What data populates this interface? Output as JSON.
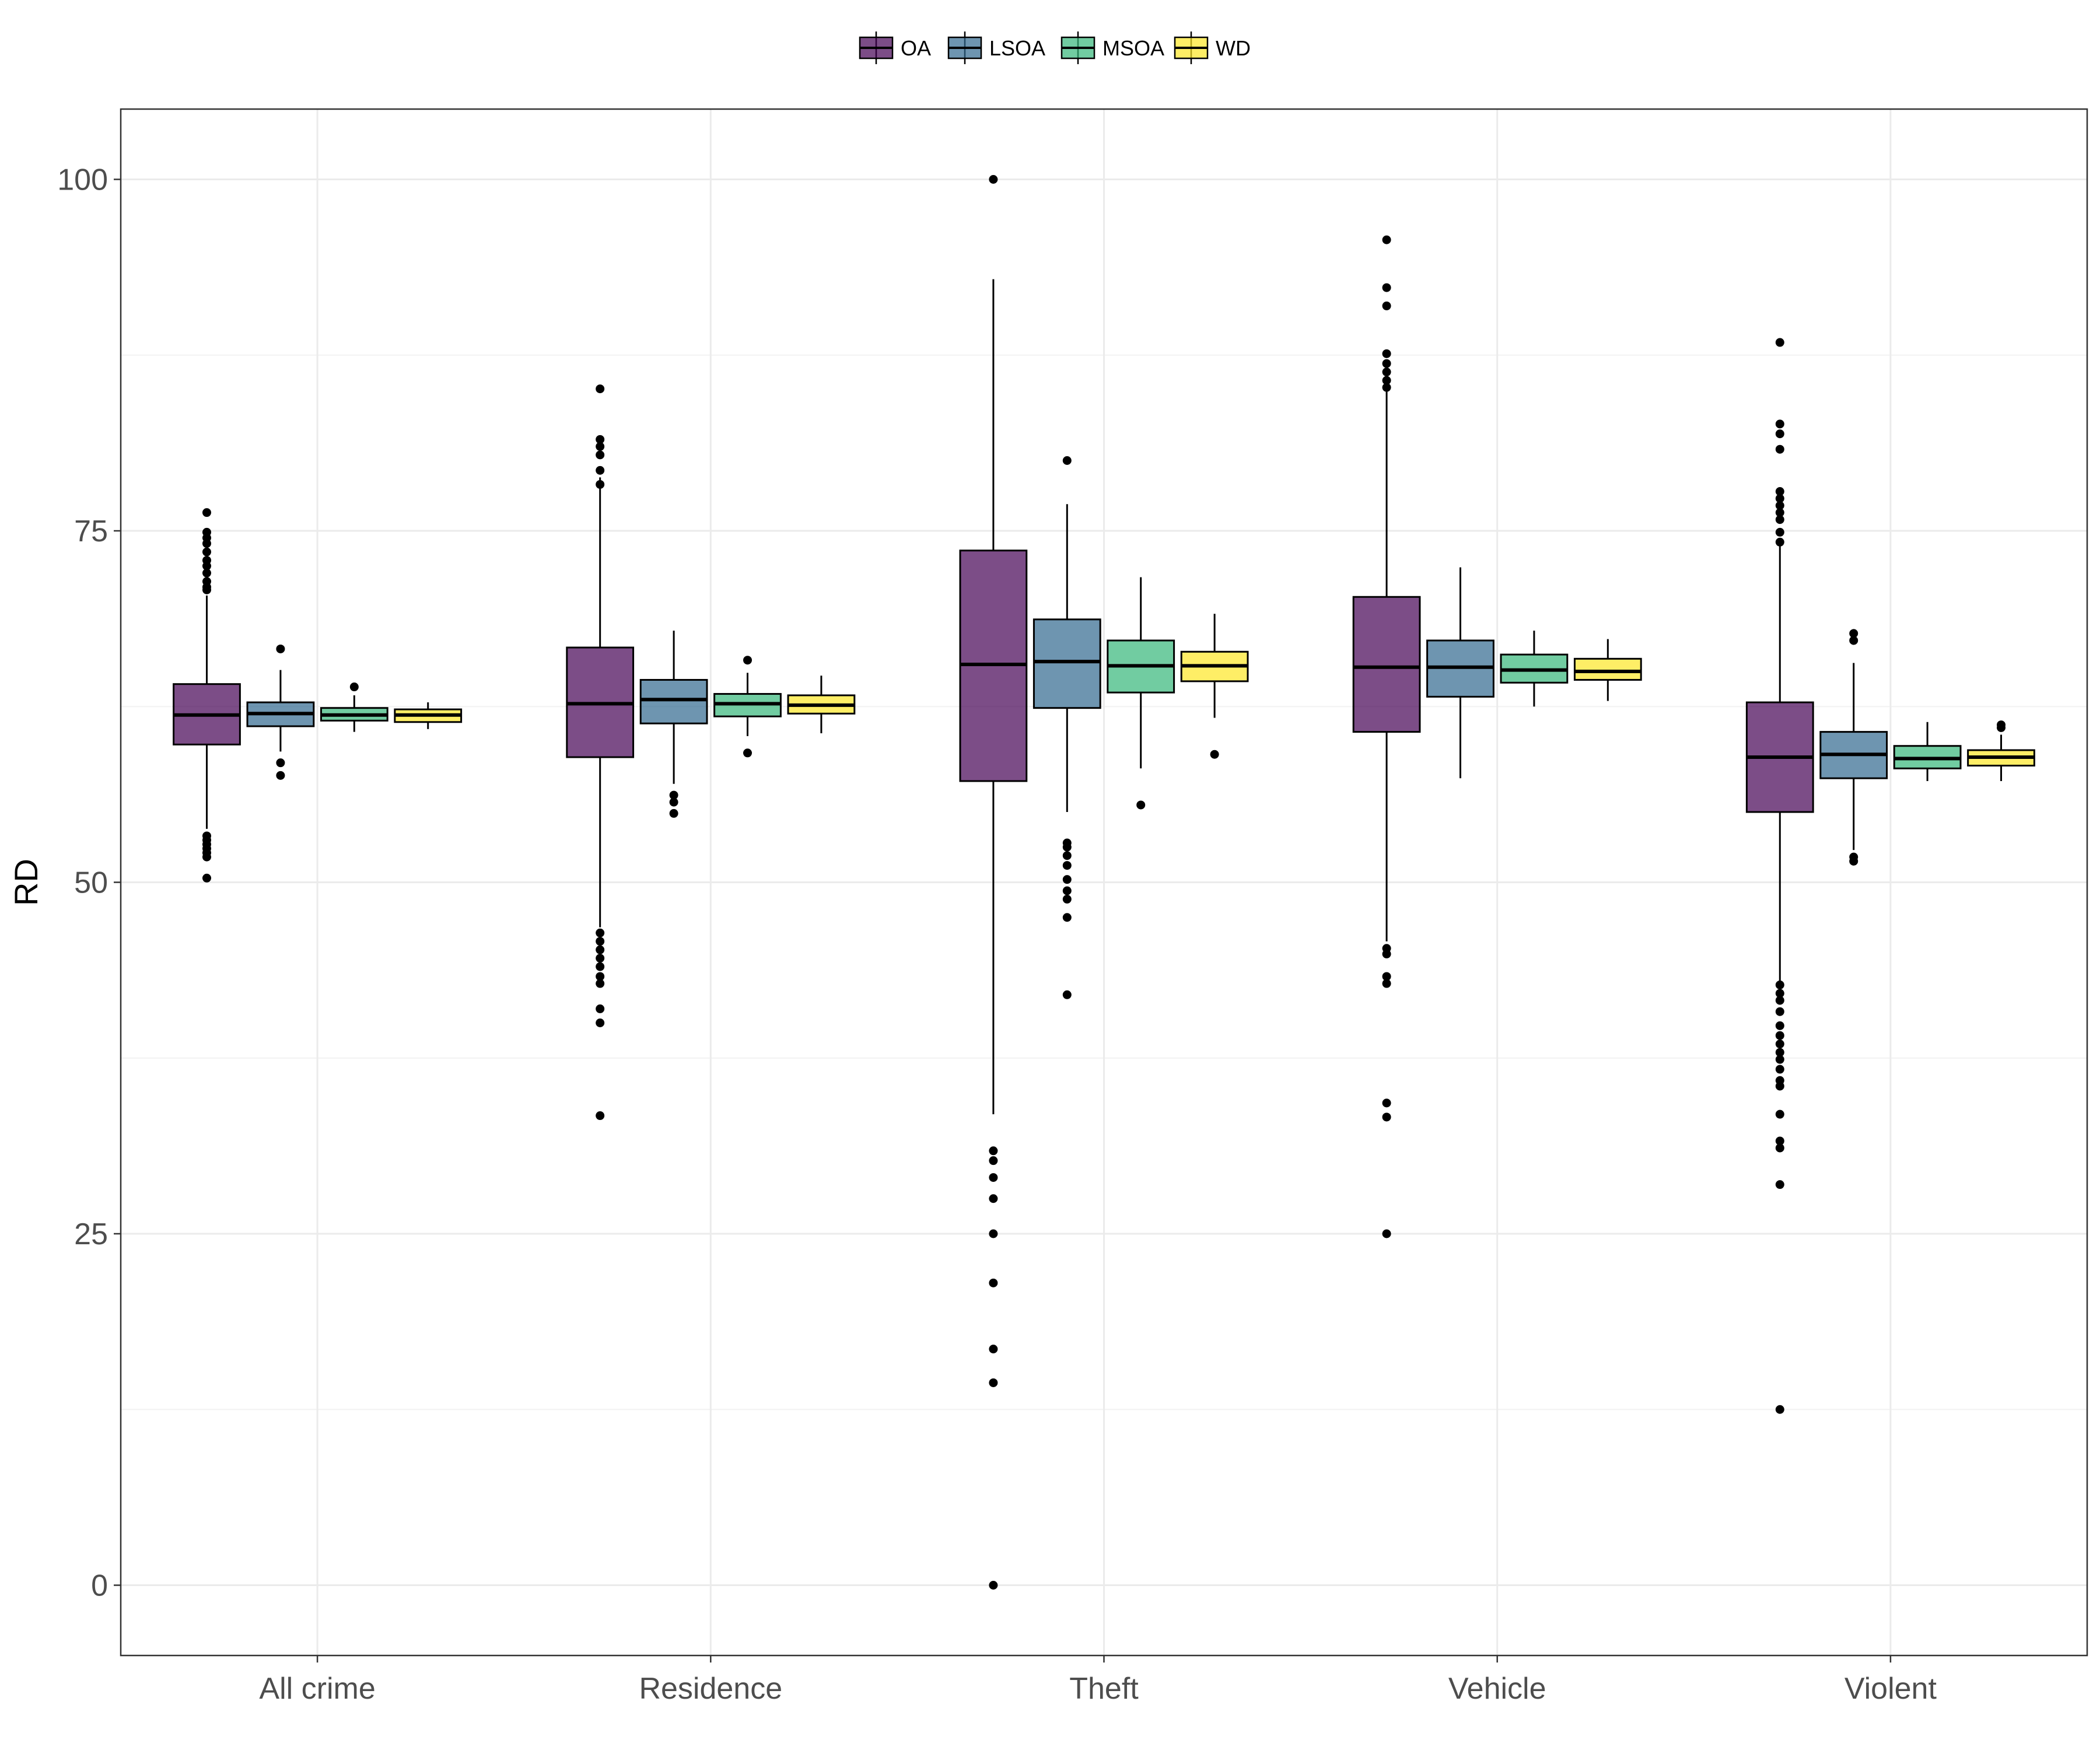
{
  "chart_data": {
    "type": "box",
    "ylabel": "RD",
    "xlabel": "",
    "ylim": [
      -5,
      105
    ],
    "yticks": [
      0,
      25,
      50,
      75,
      100
    ],
    "categories": [
      "All crime",
      "Residence",
      "Theft",
      "Vehicle",
      "Violent"
    ],
    "legend": {
      "position": "top",
      "title": ""
    },
    "grid": true,
    "series": [
      {
        "name": "OA",
        "color": "#440154",
        "boxes": [
          {
            "q1": 59.8,
            "median": 61.9,
            "q3": 64.1,
            "lower": 53.8,
            "upper": 70.4,
            "outliers": [
              76.3,
              74.9,
              74.5,
              74.1,
              73.5,
              72.9,
              72.5,
              72.0,
              71.4,
              71.0,
              70.8,
              53.3,
              53.0,
              52.7,
              52.4,
              52.1,
              51.8,
              50.3
            ]
          },
          {
            "q1": 58.9,
            "median": 62.7,
            "q3": 66.7,
            "lower": 46.8,
            "upper": 78.8,
            "outliers": [
              85.1,
              81.5,
              81.0,
              80.4,
              79.3,
              78.3,
              46.4,
              45.8,
              45.2,
              44.6,
              44.0,
              43.3,
              42.8,
              41.0,
              40.0,
              33.4
            ]
          },
          {
            "q1": 57.2,
            "median": 65.5,
            "q3": 73.6,
            "lower": 33.5,
            "upper": 92.9,
            "outliers": [
              100.0,
              30.9,
              30.2,
              29.0,
              27.5,
              25.0,
              21.5,
              16.8,
              14.4,
              0.0
            ]
          },
          {
            "q1": 60.7,
            "median": 65.3,
            "q3": 70.3,
            "lower": 45.8,
            "upper": 85.0,
            "outliers": [
              95.7,
              92.3,
              91.0,
              87.6,
              86.9,
              86.3,
              85.7,
              85.2,
              45.3,
              44.9,
              43.3,
              42.8,
              34.3,
              33.3,
              25.0
            ]
          },
          {
            "q1": 55.0,
            "median": 58.9,
            "q3": 62.8,
            "lower": 43.0,
            "upper": 74.5,
            "outliers": [
              88.4,
              82.6,
              81.9,
              80.8,
              77.8,
              77.3,
              76.8,
              76.3,
              75.8,
              74.9,
              74.2,
              42.7,
              42.1,
              41.6,
              40.8,
              39.8,
              39.1,
              38.5,
              37.9,
              37.4,
              36.7,
              35.9,
              35.5,
              33.5,
              31.6,
              31.1,
              28.5,
              12.5
            ]
          }
        ]
      },
      {
        "name": "LSOA",
        "color": "#31688e",
        "boxes": [
          {
            "q1": 61.1,
            "median": 62.0,
            "q3": 62.8,
            "lower": 59.3,
            "upper": 65.1,
            "outliers": [
              66.6,
              58.5,
              57.6
            ]
          },
          {
            "q1": 61.3,
            "median": 63.0,
            "q3": 64.4,
            "lower": 57.0,
            "upper": 67.9,
            "outliers": [
              56.2,
              55.7,
              54.9
            ]
          },
          {
            "q1": 62.4,
            "median": 65.7,
            "q3": 68.7,
            "lower": 55.0,
            "upper": 76.9,
            "outliers": [
              80.0,
              52.8,
              52.5,
              51.9,
              51.2,
              50.2,
              49.4,
              48.8,
              47.5,
              42.0
            ]
          },
          {
            "q1": 63.2,
            "median": 65.3,
            "q3": 67.2,
            "lower": 57.4,
            "upper": 72.4,
            "outliers": []
          },
          {
            "q1": 57.4,
            "median": 59.1,
            "q3": 60.7,
            "lower": 52.3,
            "upper": 65.6,
            "outliers": [
              67.7,
              67.2,
              51.8,
              51.5
            ]
          }
        ]
      },
      {
        "name": "MSOA",
        "color": "#35b779",
        "boxes": [
          {
            "q1": 61.5,
            "median": 61.9,
            "q3": 62.4,
            "lower": 60.7,
            "upper": 63.3,
            "outliers": [
              63.9
            ]
          },
          {
            "q1": 61.8,
            "median": 62.7,
            "q3": 63.4,
            "lower": 60.4,
            "upper": 64.9,
            "outliers": [
              65.8,
              59.2
            ]
          },
          {
            "q1": 63.5,
            "median": 65.4,
            "q3": 67.2,
            "lower": 58.1,
            "upper": 71.7,
            "outliers": [
              55.5
            ]
          },
          {
            "q1": 64.2,
            "median": 65.1,
            "q3": 66.2,
            "lower": 62.5,
            "upper": 67.9,
            "outliers": []
          },
          {
            "q1": 58.1,
            "median": 58.8,
            "q3": 59.7,
            "lower": 57.2,
            "upper": 61.4,
            "outliers": []
          }
        ]
      },
      {
        "name": "WD",
        "color": "#fde725",
        "boxes": [
          {
            "q1": 61.4,
            "median": 61.9,
            "q3": 62.3,
            "lower": 60.9,
            "upper": 62.8,
            "outliers": []
          },
          {
            "q1": 62.0,
            "median": 62.6,
            "q3": 63.3,
            "lower": 60.6,
            "upper": 64.7,
            "outliers": []
          },
          {
            "q1": 64.3,
            "median": 65.4,
            "q3": 66.4,
            "lower": 61.7,
            "upper": 69.1,
            "outliers": [
              59.1
            ]
          },
          {
            "q1": 64.4,
            "median": 65.0,
            "q3": 65.9,
            "lower": 62.9,
            "upper": 67.3,
            "outliers": []
          },
          {
            "q1": 58.3,
            "median": 58.9,
            "q3": 59.4,
            "lower": 57.2,
            "upper": 60.5,
            "outliers": [
              61.2,
              61.0
            ]
          }
        ]
      }
    ]
  }
}
